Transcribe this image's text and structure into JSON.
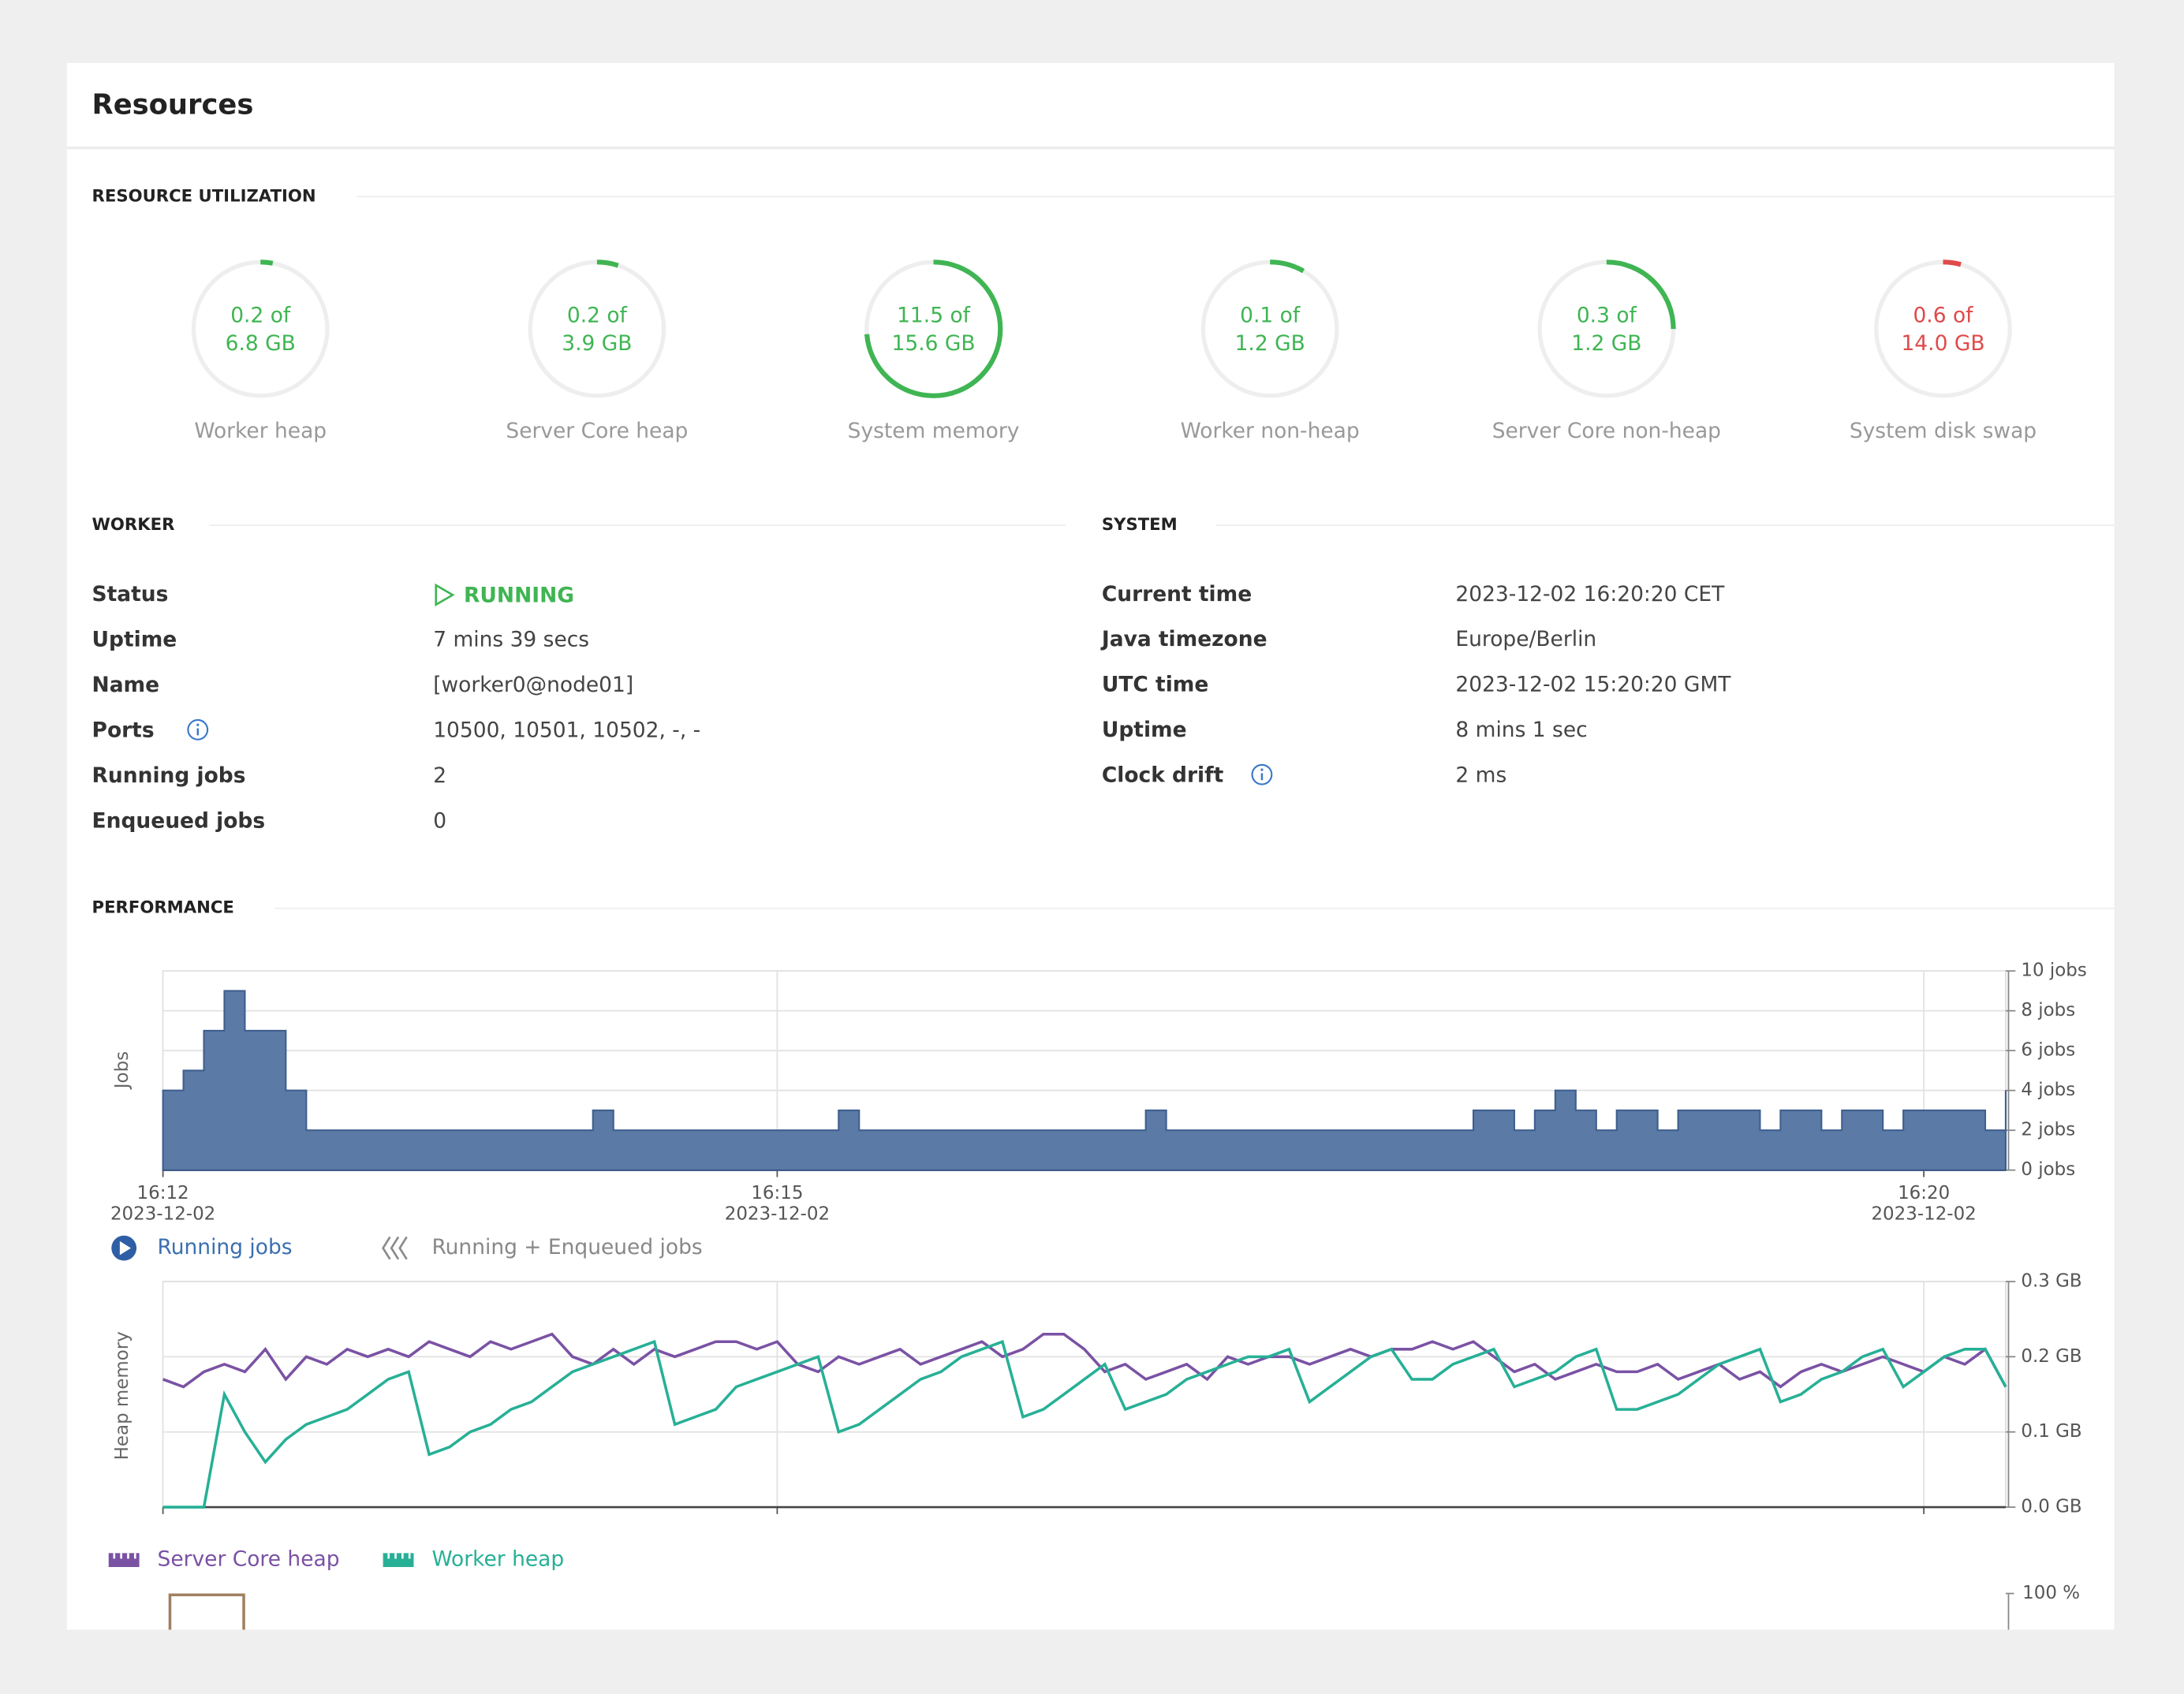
{
  "header": {
    "title": "Resources"
  },
  "utilization": {
    "title": "RESOURCE UTILIZATION",
    "gauges": [
      {
        "used_text": "0.2 of",
        "total_text": "6.8 GB",
        "label": "Worker heap",
        "used": 0.2,
        "total": 6.8,
        "color": "#3fb553"
      },
      {
        "used_text": "0.2 of",
        "total_text": "3.9 GB",
        "label": "Server Core heap",
        "used": 0.2,
        "total": 3.9,
        "color": "#3fb553"
      },
      {
        "used_text": "11.5 of",
        "total_text": "15.6 GB",
        "label": "System memory",
        "used": 11.5,
        "total": 15.6,
        "color": "#3fb553"
      },
      {
        "used_text": "0.1 of",
        "total_text": "1.2 GB",
        "label": "Worker non-heap",
        "used": 0.1,
        "total": 1.2,
        "color": "#3fb553"
      },
      {
        "used_text": "0.3 of",
        "total_text": "1.2 GB",
        "label": "Server Core non-heap",
        "used": 0.3,
        "total": 1.2,
        "color": "#3fb553"
      },
      {
        "used_text": "0.6 of",
        "total_text": "14.0 GB",
        "label": "System disk swap",
        "used": 0.6,
        "total": 14.0,
        "color": "#e04a4a"
      }
    ]
  },
  "worker": {
    "title": "WORKER",
    "rows": [
      {
        "label": "Status",
        "value": "RUNNING",
        "status": true
      },
      {
        "label": "Uptime",
        "value": "7 mins 39 secs"
      },
      {
        "label": "Name",
        "value": "[worker0@node01]"
      },
      {
        "label": "Ports",
        "value": "10500, 10501, 10502, -, -",
        "info": true
      },
      {
        "label": "Running jobs",
        "value": 2
      },
      {
        "label": "Enqueued jobs",
        "value": 0
      }
    ]
  },
  "system": {
    "title": "SYSTEM",
    "rows": [
      {
        "label": "Current time",
        "value": "2023-12-02 16:20:20 CET"
      },
      {
        "label": "Java timezone",
        "value": "Europe/Berlin"
      },
      {
        "label": "UTC time",
        "value": "2023-12-02 15:20:20 GMT"
      },
      {
        "label": "Uptime",
        "value": "8 mins 1 sec"
      },
      {
        "label": "Clock drift",
        "value": "2 ms",
        "info": true
      }
    ]
  },
  "performance": {
    "title": "PERFORMANCE",
    "partial_tick": "100 %"
  },
  "chart_data": [
    {
      "type": "step-area",
      "y_label": "Jobs",
      "categories": [
        "16:12",
        null,
        null,
        null,
        null,
        null,
        null,
        null,
        null,
        null,
        null,
        null,
        null,
        null,
        null,
        null,
        null,
        null,
        null,
        null,
        null,
        null,
        null,
        null,
        null,
        null,
        null,
        null,
        null,
        null,
        "16:15",
        null,
        null,
        null,
        null,
        null,
        null,
        null,
        null,
        null,
        null,
        null,
        null,
        null,
        null,
        null,
        null,
        null,
        null,
        null,
        null,
        null,
        null,
        null,
        null,
        null,
        null,
        null,
        null,
        null,
        null,
        null,
        null,
        null,
        null,
        null,
        null,
        null,
        null,
        null,
        null,
        null,
        null,
        null,
        null,
        null,
        null,
        null,
        null,
        null,
        null,
        null,
        null,
        null,
        null,
        null,
        "16:20",
        null,
        null,
        null,
        null
      ],
      "date_labels": [
        "2023-12-02",
        null,
        null,
        null,
        null,
        null,
        null,
        null,
        null,
        null,
        null,
        null,
        null,
        null,
        null,
        null,
        null,
        null,
        null,
        null,
        null,
        null,
        null,
        null,
        null,
        null,
        null,
        null,
        null,
        null,
        "2023-12-02",
        null,
        null,
        null,
        null,
        null,
        null,
        null,
        null,
        null,
        null,
        null,
        null,
        null,
        null,
        null,
        null,
        null,
        null,
        null,
        null,
        null,
        null,
        null,
        null,
        null,
        null,
        null,
        null,
        null,
        null,
        null,
        null,
        null,
        null,
        null,
        null,
        null,
        null,
        null,
        null,
        null,
        null,
        null,
        null,
        null,
        null,
        null,
        null,
        null,
        null,
        null,
        null,
        null,
        null,
        null,
        "2023-12-02",
        null,
        null,
        null,
        null
      ],
      "ylim": [
        0,
        10
      ],
      "yticks": [
        {
          "value": 0,
          "label": "0 jobs"
        },
        {
          "value": 2,
          "label": "2 jobs"
        },
        {
          "value": 4,
          "label": "4 jobs"
        },
        {
          "value": 6,
          "label": "6 jobs"
        },
        {
          "value": 8,
          "label": "8 jobs"
        },
        {
          "value": 10,
          "label": "10 jobs"
        }
      ],
      "grid": true,
      "series": [
        {
          "name": "Running jobs",
          "color": "#5b7ba6",
          "values": [
            4,
            5,
            7,
            9,
            7,
            7,
            4,
            2,
            2,
            2,
            2,
            2,
            2,
            2,
            2,
            2,
            2,
            2,
            2,
            2,
            2,
            3,
            2,
            2,
            2,
            2,
            2,
            2,
            2,
            2,
            2,
            2,
            2,
            3,
            2,
            2,
            2,
            2,
            2,
            2,
            2,
            2,
            2,
            2,
            2,
            2,
            2,
            2,
            3,
            2,
            2,
            2,
            2,
            2,
            2,
            2,
            2,
            2,
            2,
            2,
            2,
            2,
            2,
            2,
            3,
            3,
            2,
            3,
            4,
            3,
            2,
            3,
            3,
            2,
            3,
            3,
            3,
            3,
            2,
            3,
            3,
            2,
            3,
            3,
            2,
            3,
            3,
            3,
            3,
            2,
            4
          ]
        },
        {
          "name": "Running + Enqueued jobs",
          "color": "#8a8a8a",
          "hidden": true
        }
      ]
    },
    {
      "type": "line",
      "y_label": "Heap memory",
      "categories": [
        null,
        null,
        null,
        null,
        null,
        null,
        null,
        null,
        null,
        null,
        null,
        null,
        null,
        null,
        null,
        null,
        null,
        null,
        null,
        null,
        null,
        null,
        null,
        null,
        null,
        null,
        null,
        null,
        null,
        null,
        null,
        null,
        null,
        null,
        null,
        null,
        null,
        null,
        null,
        null,
        null,
        null,
        null,
        null,
        null,
        null,
        null,
        null,
        null,
        null,
        null,
        null,
        null,
        null,
        null,
        null,
        null,
        null,
        null,
        null,
        null,
        null,
        null,
        null,
        null,
        null,
        null,
        null,
        null,
        null,
        null,
        null,
        null,
        null,
        null,
        null,
        null,
        null,
        null,
        null,
        null,
        null,
        null,
        null,
        null,
        null,
        null,
        null,
        null,
        null,
        null
      ],
      "ylim": [
        0,
        0.3
      ],
      "yticks": [
        {
          "value": 0,
          "label": "0.0 GB"
        },
        {
          "value": 0.1,
          "label": "0.1 GB"
        },
        {
          "value": 0.2,
          "label": "0.2 GB"
        },
        {
          "value": 0.3,
          "label": "0.3 GB"
        }
      ],
      "grid": true,
      "series": [
        {
          "name": "Server Core heap",
          "color": "#7a52a4",
          "values": [
            0.17,
            0.16,
            0.18,
            0.19,
            0.18,
            0.21,
            0.17,
            0.2,
            0.19,
            0.21,
            0.2,
            0.21,
            0.2,
            0.22,
            0.21,
            0.2,
            0.22,
            0.21,
            0.22,
            0.23,
            0.2,
            0.19,
            0.21,
            0.19,
            0.21,
            0.2,
            0.21,
            0.22,
            0.22,
            0.21,
            0.22,
            0.19,
            0.18,
            0.2,
            0.19,
            0.2,
            0.21,
            0.19,
            0.2,
            0.21,
            0.22,
            0.2,
            0.21,
            0.23,
            0.23,
            0.21,
            0.18,
            0.19,
            0.17,
            0.18,
            0.19,
            0.17,
            0.2,
            0.19,
            0.2,
            0.2,
            0.19,
            0.2,
            0.21,
            0.2,
            0.21,
            0.21,
            0.22,
            0.21,
            0.22,
            0.2,
            0.18,
            0.19,
            0.17,
            0.18,
            0.19,
            0.18,
            0.18,
            0.19,
            0.17,
            0.18,
            0.19,
            0.17,
            0.18,
            0.16,
            0.18,
            0.19,
            0.18,
            0.19,
            0.2,
            0.19,
            0.18,
            0.2,
            0.19,
            0.21,
            0.16
          ]
        },
        {
          "name": "Worker heap",
          "color": "#27b096",
          "values": [
            0,
            0,
            0,
            0.15,
            0.1,
            0.06,
            0.09,
            0.11,
            0.12,
            0.13,
            0.15,
            0.17,
            0.18,
            0.07,
            0.08,
            0.1,
            0.11,
            0.13,
            0.14,
            0.16,
            0.18,
            0.19,
            0.2,
            0.21,
            0.22,
            0.11,
            0.12,
            0.13,
            0.16,
            0.17,
            0.18,
            0.19,
            0.2,
            0.1,
            0.11,
            0.13,
            0.15,
            0.17,
            0.18,
            0.2,
            0.21,
            0.22,
            0.12,
            0.13,
            0.15,
            0.17,
            0.19,
            0.13,
            0.14,
            0.15,
            0.17,
            0.18,
            0.19,
            0.2,
            0.2,
            0.21,
            0.14,
            0.16,
            0.18,
            0.2,
            0.21,
            0.17,
            0.17,
            0.19,
            0.2,
            0.21,
            0.16,
            0.17,
            0.18,
            0.2,
            0.21,
            0.13,
            0.13,
            0.14,
            0.15,
            0.17,
            0.19,
            0.2,
            0.21,
            0.14,
            0.15,
            0.17,
            0.18,
            0.2,
            0.21,
            0.16,
            0.18,
            0.2,
            0.21,
            0.21,
            0.16
          ]
        }
      ]
    }
  ]
}
